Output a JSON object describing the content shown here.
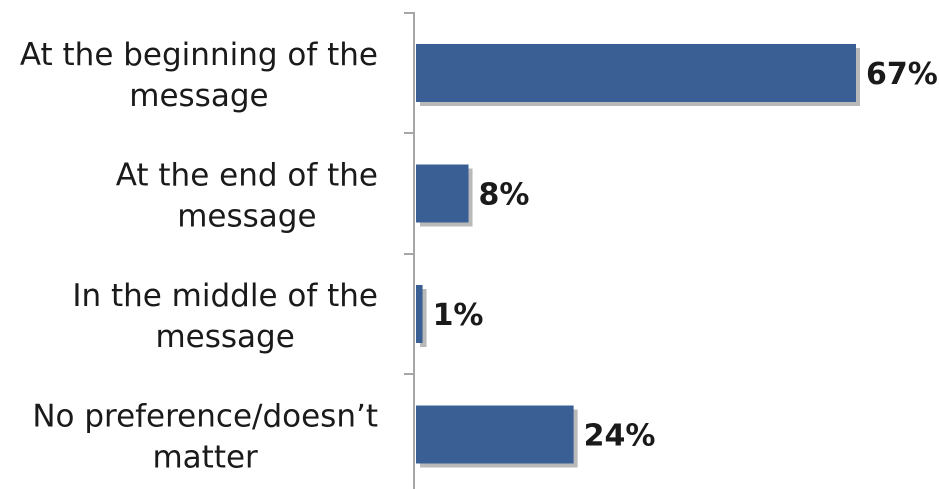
{
  "chart_data": {
    "type": "bar",
    "orientation": "horizontal",
    "categories": [
      "At the beginning of the message",
      "At the end of the message",
      "In the middle of the message",
      "No preference/doesn’t matter"
    ],
    "category_lines": [
      [
        "At the beginning of the",
        "message"
      ],
      [
        "At the end of the",
        "message"
      ],
      [
        "In the middle of the",
        "message"
      ],
      [
        "No preference/doesn’t",
        "matter"
      ]
    ],
    "values": [
      67,
      8,
      1,
      24
    ],
    "value_labels": [
      "67%",
      "8%",
      "1%",
      "24%"
    ],
    "unit": "%",
    "xlim": [
      0,
      70
    ],
    "grid": false,
    "legend": "none",
    "title": "",
    "xlabel": "",
    "ylabel": "",
    "colors": {
      "bar": "#3a5f94",
      "bar_shadow": "#b9b9b9",
      "axis": "#a6a6a6",
      "text": "#1a1a1a"
    }
  }
}
